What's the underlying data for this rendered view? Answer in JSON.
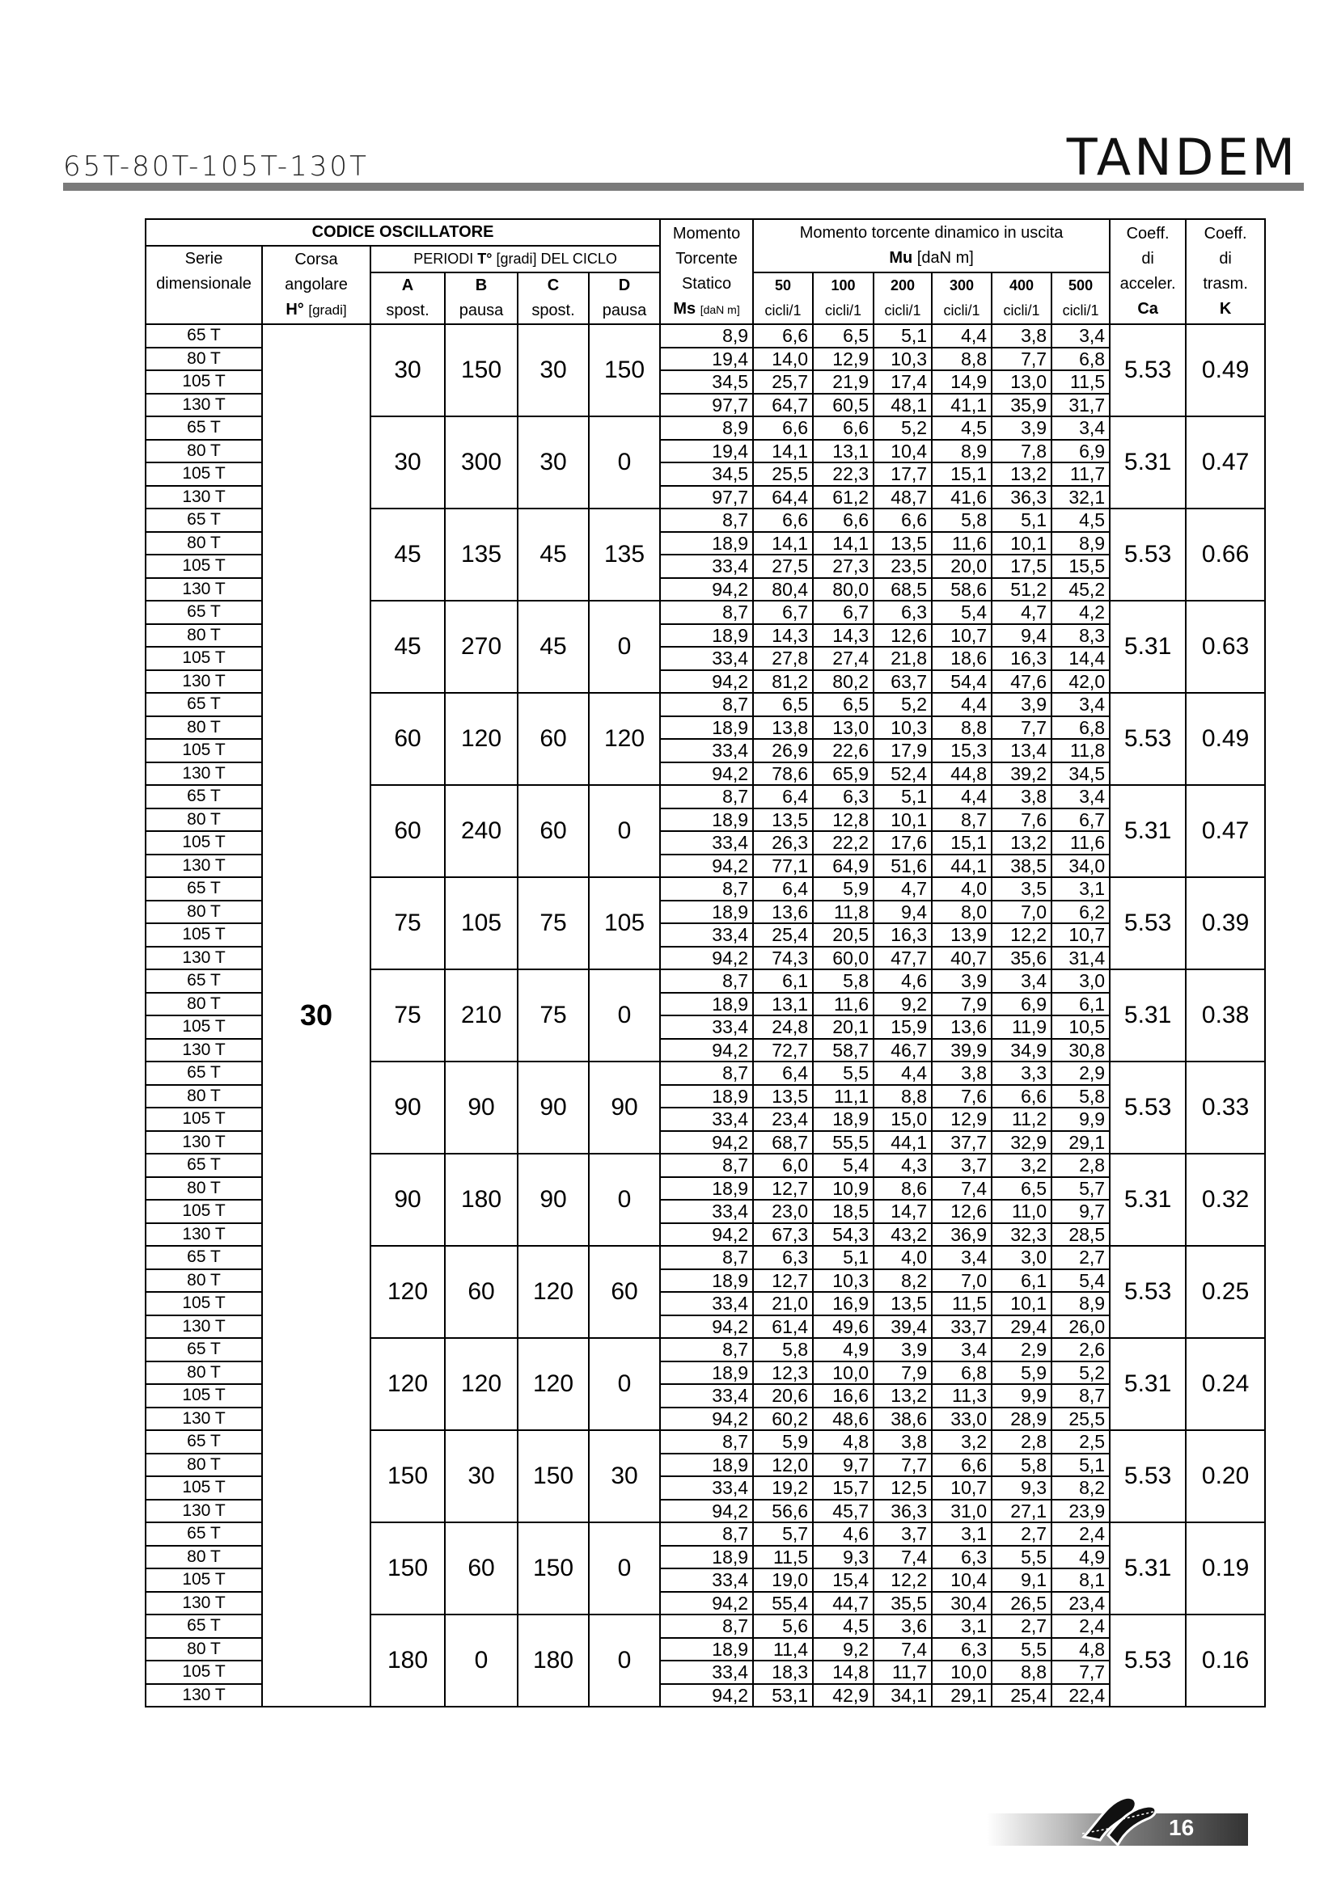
{
  "header": {
    "title": "65T-80T-105T-130T",
    "brand": "TANDEM"
  },
  "footer": {
    "page": "16",
    "logo": "Colombo oscillator logo"
  },
  "table": {
    "head": {
      "codice": "CODICE OSCILLATORE",
      "momento_static": [
        "Momento",
        "Torcente",
        "Statico"
      ],
      "ms": "Ms",
      "ms_unit": "[daN m]",
      "dynamic_title": "Momento torcente dinamico in uscita",
      "mu": "Mu",
      "mu_unit": "[daN m]",
      "ca": [
        "Coeff.",
        "di",
        "acceler.",
        "Ca"
      ],
      "k": [
        "Coeff.",
        "di",
        "trasm.",
        "K"
      ],
      "serie": [
        "Serie",
        "dimensionale"
      ],
      "corsa": [
        "Corsa",
        "angolare"
      ],
      "h": "H°",
      "h_unit": "[gradi]",
      "periodi_pre": "PERIODI ",
      "periodi_t": "T°",
      "periodi_post": " [gradi] DEL CICLO",
      "phases": [
        {
          "l": "A",
          "s": "spost."
        },
        {
          "l": "B",
          "s": "pausa"
        },
        {
          "l": "C",
          "s": "spost."
        },
        {
          "l": "D",
          "s": "pausa"
        }
      ],
      "cycles": [
        "50",
        "100",
        "200",
        "300",
        "400",
        "500"
      ],
      "cycles_unit": "cicli/1"
    },
    "series": [
      "65 T",
      "80 T",
      "105 T",
      "130 T"
    ],
    "corsa_value": "30",
    "groups": [
      {
        "a": "30",
        "b": "150",
        "c": "30",
        "d": "150",
        "ca": "5.53",
        "k": "0.49",
        "rows": [
          [
            "8,9",
            "6,6",
            "6,5",
            "5,1",
            "4,4",
            "3,8",
            "3,4"
          ],
          [
            "19,4",
            "14,0",
            "12,9",
            "10,3",
            "8,8",
            "7,7",
            "6,8"
          ],
          [
            "34,5",
            "25,7",
            "21,9",
            "17,4",
            "14,9",
            "13,0",
            "11,5"
          ],
          [
            "97,7",
            "64,7",
            "60,5",
            "48,1",
            "41,1",
            "35,9",
            "31,7"
          ]
        ]
      },
      {
        "a": "30",
        "b": "300",
        "c": "30",
        "d": "0",
        "ca": "5.31",
        "k": "0.47",
        "rows": [
          [
            "8,9",
            "6,6",
            "6,6",
            "5,2",
            "4,5",
            "3,9",
            "3,4"
          ],
          [
            "19,4",
            "14,1",
            "13,1",
            "10,4",
            "8,9",
            "7,8",
            "6,9"
          ],
          [
            "34,5",
            "25,5",
            "22,3",
            "17,7",
            "15,1",
            "13,2",
            "11,7"
          ],
          [
            "97,7",
            "64,4",
            "61,2",
            "48,7",
            "41,6",
            "36,3",
            "32,1"
          ]
        ]
      },
      {
        "a": "45",
        "b": "135",
        "c": "45",
        "d": "135",
        "ca": "5.53",
        "k": "0.66",
        "rows": [
          [
            "8,7",
            "6,6",
            "6,6",
            "6,6",
            "5,8",
            "5,1",
            "4,5"
          ],
          [
            "18,9",
            "14,1",
            "14,1",
            "13,5",
            "11,6",
            "10,1",
            "8,9"
          ],
          [
            "33,4",
            "27,5",
            "27,3",
            "23,5",
            "20,0",
            "17,5",
            "15,5"
          ],
          [
            "94,2",
            "80,4",
            "80,0",
            "68,5",
            "58,6",
            "51,2",
            "45,2"
          ]
        ]
      },
      {
        "a": "45",
        "b": "270",
        "c": "45",
        "d": "0",
        "ca": "5.31",
        "k": "0.63",
        "rows": [
          [
            "8,7",
            "6,7",
            "6,7",
            "6,3",
            "5,4",
            "4,7",
            "4,2"
          ],
          [
            "18,9",
            "14,3",
            "14,3",
            "12,6",
            "10,7",
            "9,4",
            "8,3"
          ],
          [
            "33,4",
            "27,8",
            "27,4",
            "21,8",
            "18,6",
            "16,3",
            "14,4"
          ],
          [
            "94,2",
            "81,2",
            "80,2",
            "63,7",
            "54,4",
            "47,6",
            "42,0"
          ]
        ]
      },
      {
        "a": "60",
        "b": "120",
        "c": "60",
        "d": "120",
        "ca": "5.53",
        "k": "0.49",
        "rows": [
          [
            "8,7",
            "6,5",
            "6,5",
            "5,2",
            "4,4",
            "3,9",
            "3,4"
          ],
          [
            "18,9",
            "13,8",
            "13,0",
            "10,3",
            "8,8",
            "7,7",
            "6,8"
          ],
          [
            "33,4",
            "26,9",
            "22,6",
            "17,9",
            "15,3",
            "13,4",
            "11,8"
          ],
          [
            "94,2",
            "78,6",
            "65,9",
            "52,4",
            "44,8",
            "39,2",
            "34,5"
          ]
        ]
      },
      {
        "a": "60",
        "b": "240",
        "c": "60",
        "d": "0",
        "ca": "5.31",
        "k": "0.47",
        "rows": [
          [
            "8,7",
            "6,4",
            "6,3",
            "5,1",
            "4,4",
            "3,8",
            "3,4"
          ],
          [
            "18,9",
            "13,5",
            "12,8",
            "10,1",
            "8,7",
            "7,6",
            "6,7"
          ],
          [
            "33,4",
            "26,3",
            "22,2",
            "17,6",
            "15,1",
            "13,2",
            "11,6"
          ],
          [
            "94,2",
            "77,1",
            "64,9",
            "51,6",
            "44,1",
            "38,5",
            "34,0"
          ]
        ]
      },
      {
        "a": "75",
        "b": "105",
        "c": "75",
        "d": "105",
        "ca": "5.53",
        "k": "0.39",
        "rows": [
          [
            "8,7",
            "6,4",
            "5,9",
            "4,7",
            "4,0",
            "3,5",
            "3,1"
          ],
          [
            "18,9",
            "13,6",
            "11,8",
            "9,4",
            "8,0",
            "7,0",
            "6,2"
          ],
          [
            "33,4",
            "25,4",
            "20,5",
            "16,3",
            "13,9",
            "12,2",
            "10,7"
          ],
          [
            "94,2",
            "74,3",
            "60,0",
            "47,7",
            "40,7",
            "35,6",
            "31,4"
          ]
        ]
      },
      {
        "a": "75",
        "b": "210",
        "c": "75",
        "d": "0",
        "ca": "5.31",
        "k": "0.38",
        "rows": [
          [
            "8,7",
            "6,1",
            "5,8",
            "4,6",
            "3,9",
            "3,4",
            "3,0"
          ],
          [
            "18,9",
            "13,1",
            "11,6",
            "9,2",
            "7,9",
            "6,9",
            "6,1"
          ],
          [
            "33,4",
            "24,8",
            "20,1",
            "15,9",
            "13,6",
            "11,9",
            "10,5"
          ],
          [
            "94,2",
            "72,7",
            "58,7",
            "46,7",
            "39,9",
            "34,9",
            "30,8"
          ]
        ]
      },
      {
        "a": "90",
        "b": "90",
        "c": "90",
        "d": "90",
        "ca": "5.53",
        "k": "0.33",
        "rows": [
          [
            "8,7",
            "6,4",
            "5,5",
            "4,4",
            "3,8",
            "3,3",
            "2,9"
          ],
          [
            "18,9",
            "13,5",
            "11,1",
            "8,8",
            "7,6",
            "6,6",
            "5,8"
          ],
          [
            "33,4",
            "23,4",
            "18,9",
            "15,0",
            "12,9",
            "11,2",
            "9,9"
          ],
          [
            "94,2",
            "68,7",
            "55,5",
            "44,1",
            "37,7",
            "32,9",
            "29,1"
          ]
        ]
      },
      {
        "a": "90",
        "b": "180",
        "c": "90",
        "d": "0",
        "ca": "5.31",
        "k": "0.32",
        "rows": [
          [
            "8,7",
            "6,0",
            "5,4",
            "4,3",
            "3,7",
            "3,2",
            "2,8"
          ],
          [
            "18,9",
            "12,7",
            "10,9",
            "8,6",
            "7,4",
            "6,5",
            "5,7"
          ],
          [
            "33,4",
            "23,0",
            "18,5",
            "14,7",
            "12,6",
            "11,0",
            "9,7"
          ],
          [
            "94,2",
            "67,3",
            "54,3",
            "43,2",
            "36,9",
            "32,3",
            "28,5"
          ]
        ]
      },
      {
        "a": "120",
        "b": "60",
        "c": "120",
        "d": "60",
        "ca": "5.53",
        "k": "0.25",
        "rows": [
          [
            "8,7",
            "6,3",
            "5,1",
            "4,0",
            "3,4",
            "3,0",
            "2,7"
          ],
          [
            "18,9",
            "12,7",
            "10,3",
            "8,2",
            "7,0",
            "6,1",
            "5,4"
          ],
          [
            "33,4",
            "21,0",
            "16,9",
            "13,5",
            "11,5",
            "10,1",
            "8,9"
          ],
          [
            "94,2",
            "61,4",
            "49,6",
            "39,4",
            "33,7",
            "29,4",
            "26,0"
          ]
        ]
      },
      {
        "a": "120",
        "b": "120",
        "c": "120",
        "d": "0",
        "ca": "5.31",
        "k": "0.24",
        "rows": [
          [
            "8,7",
            "5,8",
            "4,9",
            "3,9",
            "3,4",
            "2,9",
            "2,6"
          ],
          [
            "18,9",
            "12,3",
            "10,0",
            "7,9",
            "6,8",
            "5,9",
            "5,2"
          ],
          [
            "33,4",
            "20,6",
            "16,6",
            "13,2",
            "11,3",
            "9,9",
            "8,7"
          ],
          [
            "94,2",
            "60,2",
            "48,6",
            "38,6",
            "33,0",
            "28,9",
            "25,5"
          ]
        ]
      },
      {
        "a": "150",
        "b": "30",
        "c": "150",
        "d": "30",
        "ca": "5.53",
        "k": "0.20",
        "rows": [
          [
            "8,7",
            "5,9",
            "4,8",
            "3,8",
            "3,2",
            "2,8",
            "2,5"
          ],
          [
            "18,9",
            "12,0",
            "9,7",
            "7,7",
            "6,6",
            "5,8",
            "5,1"
          ],
          [
            "33,4",
            "19,2",
            "15,7",
            "12,5",
            "10,7",
            "9,3",
            "8,2"
          ],
          [
            "94,2",
            "56,6",
            "45,7",
            "36,3",
            "31,0",
            "27,1",
            "23,9"
          ]
        ]
      },
      {
        "a": "150",
        "b": "60",
        "c": "150",
        "d": "0",
        "ca": "5.31",
        "k": "0.19",
        "rows": [
          [
            "8,7",
            "5,7",
            "4,6",
            "3,7",
            "3,1",
            "2,7",
            "2,4"
          ],
          [
            "18,9",
            "11,5",
            "9,3",
            "7,4",
            "6,3",
            "5,5",
            "4,9"
          ],
          [
            "33,4",
            "19,0",
            "15,4",
            "12,2",
            "10,4",
            "9,1",
            "8,1"
          ],
          [
            "94,2",
            "55,4",
            "44,7",
            "35,5",
            "30,4",
            "26,5",
            "23,4"
          ]
        ]
      },
      {
        "a": "180",
        "b": "0",
        "c": "180",
        "d": "0",
        "ca": "5.53",
        "k": "0.16",
        "rows": [
          [
            "8,7",
            "5,6",
            "4,5",
            "3,6",
            "3,1",
            "2,7",
            "2,4"
          ],
          [
            "18,9",
            "11,4",
            "9,2",
            "7,4",
            "6,3",
            "5,5",
            "4,8"
          ],
          [
            "33,4",
            "18,3",
            "14,8",
            "11,7",
            "10,0",
            "8,8",
            "7,7"
          ],
          [
            "94,2",
            "53,1",
            "42,9",
            "34,1",
            "29,1",
            "25,4",
            "22,4"
          ]
        ]
      }
    ]
  }
}
